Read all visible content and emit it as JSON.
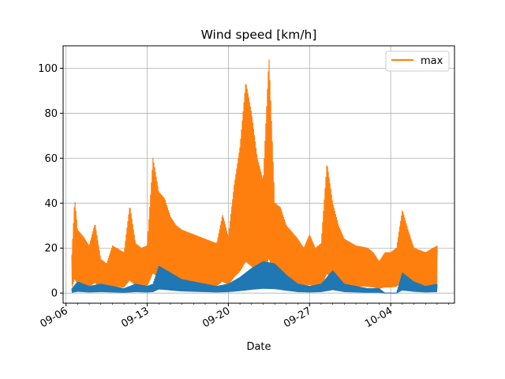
{
  "chart_data": {
    "type": "line",
    "title": "Wind speed [km/h]",
    "xlabel": "Date",
    "ylabel": "",
    "ylim": [
      -4.5,
      110
    ],
    "xlim": [
      "2023-09-05T18:00",
      "2023-10-09T12:00"
    ],
    "x_tick_labels": [
      "09-06",
      "09-13",
      "09-20",
      "09-27",
      "10-04"
    ],
    "x_ticks": [
      "2023-09-06",
      "2023-09-13",
      "2023-09-20",
      "2023-09-27",
      "2023-10-04"
    ],
    "y_ticks": [
      0,
      20,
      40,
      60,
      80,
      100
    ],
    "grid": true,
    "legend": {
      "position": "top-right",
      "entries": [
        "max"
      ]
    },
    "colors": {
      "max": "#ff7f0e",
      "other": "#1f77b4"
    },
    "series": [
      {
        "name": "",
        "color": "#1f77b4",
        "x": [
          "2023-09-06T12:00",
          "2023-09-07",
          "2023-09-08",
          "2023-09-09",
          "2023-09-10",
          "2023-09-11",
          "2023-09-12",
          "2023-09-13",
          "2023-09-13T12:00",
          "2023-09-14",
          "2023-09-15",
          "2023-09-16",
          "2023-09-17",
          "2023-09-18",
          "2023-09-19",
          "2023-09-20",
          "2023-09-21",
          "2023-09-22",
          "2023-09-23",
          "2023-09-24",
          "2023-09-25",
          "2023-09-26",
          "2023-09-27",
          "2023-09-28",
          "2023-09-29",
          "2023-09-30",
          "2023-10-01",
          "2023-10-02",
          "2023-10-03",
          "2023-10-03T12:00",
          "2023-10-04",
          "2023-10-04T12:00",
          "2023-10-05",
          "2023-10-06",
          "2023-10-07",
          "2023-10-08"
        ],
        "values": [
          2,
          5,
          3,
          4,
          3,
          2,
          4,
          3,
          4,
          12,
          9,
          6,
          5,
          4,
          3,
          4,
          7,
          11,
          14,
          13,
          8,
          4,
          3,
          4,
          10,
          4,
          3,
          2,
          2,
          0,
          0,
          0,
          9,
          5,
          3,
          4
        ]
      },
      {
        "name": "max",
        "color": "#ff7f0e",
        "x": [
          "2023-09-06T12:00",
          "2023-09-06T18:00",
          "2023-09-07",
          "2023-09-07T12:00",
          "2023-09-08",
          "2023-09-08T12:00",
          "2023-09-09",
          "2023-09-09T12:00",
          "2023-09-10",
          "2023-09-11",
          "2023-09-11T12:00",
          "2023-09-12",
          "2023-09-12T12:00",
          "2023-09-13",
          "2023-09-13T12:00",
          "2023-09-14",
          "2023-09-14T12:00",
          "2023-09-15",
          "2023-09-15T12:00",
          "2023-09-16",
          "2023-09-17",
          "2023-09-18",
          "2023-09-19",
          "2023-09-19T12:00",
          "2023-09-20",
          "2023-09-20T12:00",
          "2023-09-21",
          "2023-09-21T12:00",
          "2023-09-22",
          "2023-09-22T12:00",
          "2023-09-23",
          "2023-09-23T12:00",
          "2023-09-24",
          "2023-09-24T12:00",
          "2023-09-25",
          "2023-09-26",
          "2023-09-26T12:00",
          "2023-09-27",
          "2023-09-27T12:00",
          "2023-09-28",
          "2023-09-28T12:00",
          "2023-09-29",
          "2023-09-29T12:00",
          "2023-09-30",
          "2023-10-01",
          "2023-10-02",
          "2023-10-02T12:00",
          "2023-10-03",
          "2023-10-03T12:00",
          "2023-10-04",
          "2023-10-04T12:00",
          "2023-10-05",
          "2023-10-05T12:00",
          "2023-10-06",
          "2023-10-07",
          "2023-10-08"
        ],
        "values": [
          17,
          42,
          28,
          25,
          21,
          31,
          15,
          13,
          21,
          18,
          39,
          22,
          20,
          21,
          60,
          45,
          42,
          34,
          30,
          28,
          26,
          24,
          22,
          35,
          25,
          48,
          65,
          94,
          80,
          60,
          50,
          105,
          40,
          38,
          30,
          24,
          20,
          26,
          20,
          22,
          58,
          40,
          30,
          24,
          21,
          20,
          18,
          14,
          18,
          18,
          20,
          37,
          28,
          20,
          18,
          21
        ]
      }
    ]
  }
}
